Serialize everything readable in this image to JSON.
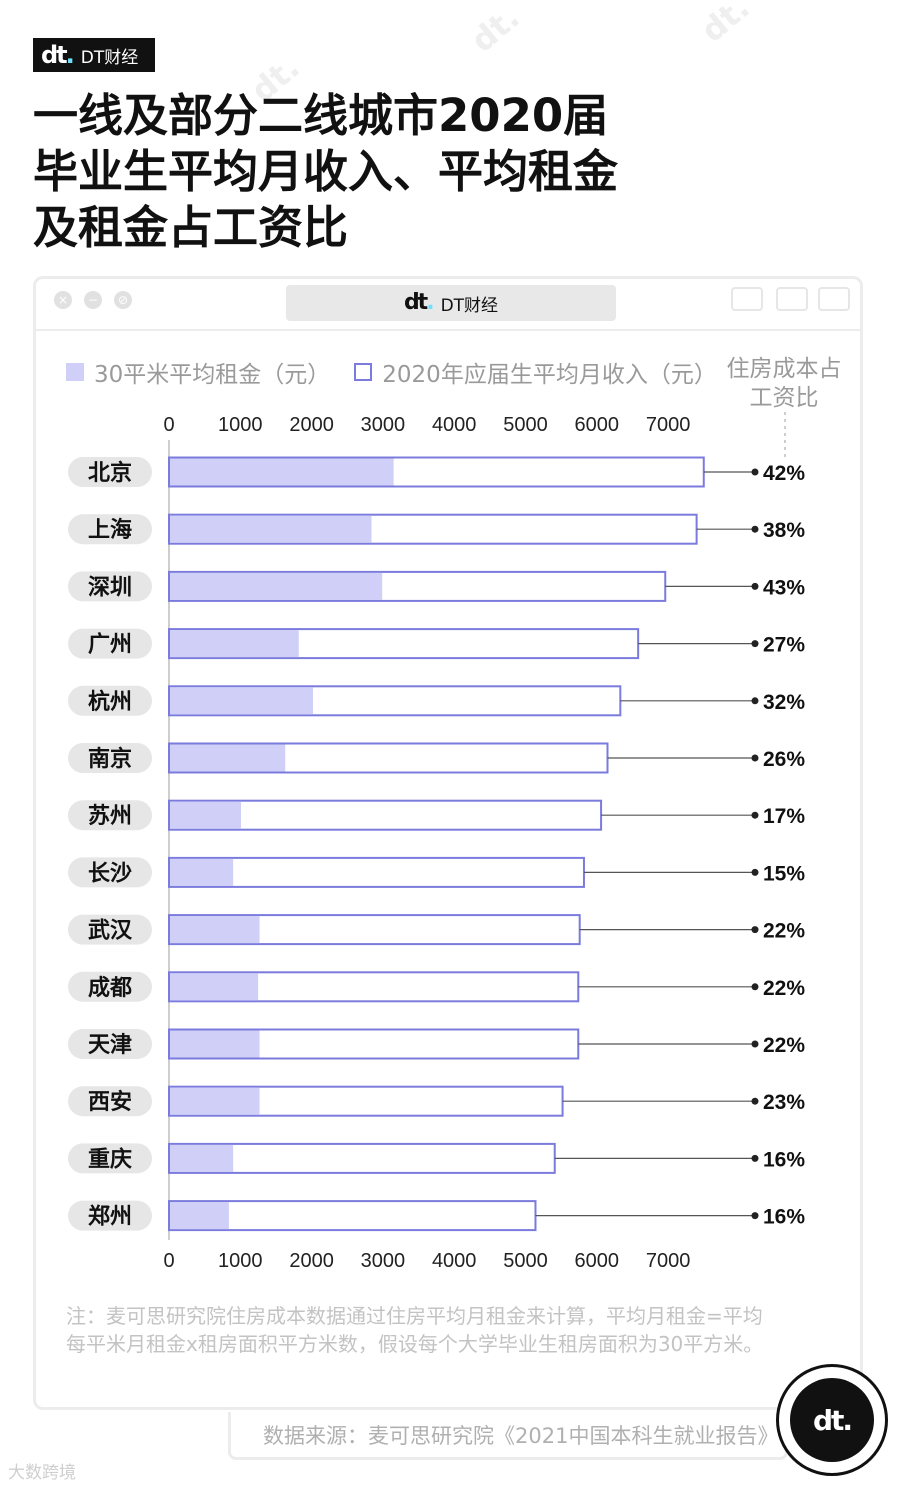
{
  "brand": {
    "logo": "dt.",
    "name": "DT财经"
  },
  "title_lines": [
    "一线及部分二线城市2020届",
    "毕业生平均月收入、平均租金",
    "及租金占工资比"
  ],
  "window": {
    "address_text": "DT财经"
  },
  "legend": {
    "rent_label": "30平米平均租金（元）",
    "income_label": "2020年应届生平均月收入（元）",
    "ratio_title": "住房成本占工资比"
  },
  "colors": {
    "rent_fill": "#cfcff8",
    "income_outline": "#7b7bdd",
    "label_bg": "#e6e6e6"
  },
  "chart_data": {
    "type": "bar",
    "orientation": "horizontal",
    "x_ticks": [
      0,
      1000,
      2000,
      3000,
      4000,
      5000,
      6000,
      7000
    ],
    "xlim": [
      0,
      7000
    ],
    "categories": [
      "北京",
      "上海",
      "深圳",
      "广州",
      "杭州",
      "南京",
      "苏州",
      "长沙",
      "武汉",
      "成都",
      "天津",
      "西安",
      "重庆",
      "郑州"
    ],
    "series": [
      {
        "name": "30平米平均租金（元）",
        "values": [
          3150,
          2840,
          2990,
          1820,
          2020,
          1630,
          1010,
          900,
          1270,
          1250,
          1270,
          1270,
          900,
          840
        ]
      },
      {
        "name": "2020年应届生平均月收入（元）",
        "values": [
          7500,
          7400,
          6960,
          6580,
          6330,
          6150,
          6060,
          5820,
          5760,
          5740,
          5740,
          5520,
          5410,
          5140
        ]
      }
    ],
    "ratio_labels": [
      "42%",
      "38%",
      "43%",
      "27%",
      "32%",
      "26%",
      "17%",
      "15%",
      "22%",
      "22%",
      "22%",
      "23%",
      "16%",
      "16%"
    ]
  },
  "note": "注：麦可思研究院住房成本数据通过住房平均月租金来计算，平均月租金=平均每平米月租金x租房面积平方米数，假设每个大学毕业生租房面积为30平方米。",
  "source": "数据来源：麦可思研究院《2021中国本科生就业报告》",
  "badge": {
    "logo": "dt."
  },
  "corner_watermark": "大数跨境"
}
